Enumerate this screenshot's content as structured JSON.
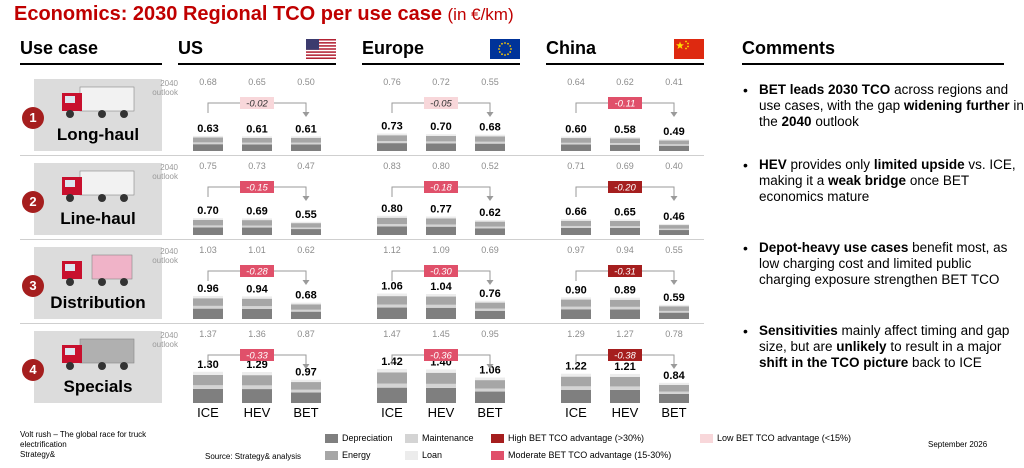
{
  "title": "Economics: 2030 Regional TCO per use case",
  "title_unit": "(in €/km)",
  "headers": {
    "use_case": "Use case",
    "comments": "Comments"
  },
  "regions": [
    {
      "name": "US",
      "flag": "us-flag"
    },
    {
      "name": "Europe",
      "flag": "eu-flag"
    },
    {
      "name": "China",
      "flag": "china-flag"
    }
  ],
  "outlook_label": "2040 outlook",
  "x_labels": [
    "ICE",
    "HEV",
    "BET"
  ],
  "colors": {
    "depreciation": "#7f7f7f",
    "maintenance": "#d4d4d4",
    "energy": "#a6a6a6",
    "loan": "#ececec",
    "high_adv": "#a51e1e",
    "moderate_adv": "#e0506a",
    "low_adv": "#f8d7da"
  },
  "chart_data": {
    "type": "bar",
    "title": "Economics: 2030 Regional TCO per use case",
    "ylabel": "TCO (in €/km)",
    "categories": [
      "ICE",
      "HEV",
      "BET"
    ],
    "use_cases": [
      {
        "number": "1",
        "name": "Long-haul",
        "icon": "long-haul-truck-icon",
        "regions": [
          {
            "region": "US",
            "tco_2030": [
              0.63,
              0.61,
              0.61
            ],
            "outlook_2040": [
              "0.68",
              "0.65",
              "0.50"
            ],
            "gap": "-0.02",
            "advantage": "low"
          },
          {
            "region": "Europe",
            "tco_2030": [
              0.73,
              0.7,
              0.68
            ],
            "outlook_2040": [
              "0.76",
              "0.72",
              "0.55"
            ],
            "gap": "-0.05",
            "advantage": "low"
          },
          {
            "region": "China",
            "tco_2030": [
              0.6,
              0.58,
              0.49
            ],
            "outlook_2040": [
              "0.64",
              "0.62",
              "0.41"
            ],
            "gap": "-0.11",
            "advantage": "moderate"
          }
        ]
      },
      {
        "number": "2",
        "name": "Line-haul",
        "icon": "line-haul-truck-icon",
        "regions": [
          {
            "region": "US",
            "tco_2030": [
              0.7,
              0.69,
              0.55
            ],
            "outlook_2040": [
              "0.75",
              "0.73",
              "0.47"
            ],
            "gap": "-0.15",
            "advantage": "moderate"
          },
          {
            "region": "Europe",
            "tco_2030": [
              0.8,
              0.77,
              0.62
            ],
            "outlook_2040": [
              "0.83",
              "0.80",
              "0.52"
            ],
            "gap": "-0.18",
            "advantage": "moderate"
          },
          {
            "region": "China",
            "tco_2030": [
              0.66,
              0.65,
              0.46
            ],
            "outlook_2040": [
              "0.71",
              "0.69",
              "0.40"
            ],
            "gap": "-0.20",
            "advantage": "high"
          }
        ]
      },
      {
        "number": "3",
        "name": "Distribution",
        "icon": "distribution-truck-icon",
        "regions": [
          {
            "region": "US",
            "tco_2030": [
              0.96,
              0.94,
              0.68
            ],
            "outlook_2040": [
              "1.03",
              "1.01",
              "0.62"
            ],
            "gap": "-0.28",
            "advantage": "moderate"
          },
          {
            "region": "Europe",
            "tco_2030": [
              1.06,
              1.04,
              0.76
            ],
            "outlook_2040": [
              "1.12",
              "1.09",
              "0.69"
            ],
            "gap": "-0.30",
            "advantage": "moderate"
          },
          {
            "region": "China",
            "tco_2030": [
              0.9,
              0.89,
              0.59
            ],
            "outlook_2040": [
              "0.97",
              "0.94",
              "0.55"
            ],
            "gap": "-0.31",
            "advantage": "high"
          }
        ]
      },
      {
        "number": "4",
        "name": "Specials",
        "icon": "specials-truck-icon",
        "regions": [
          {
            "region": "US",
            "tco_2030": [
              1.3,
              1.29,
              0.97
            ],
            "outlook_2040": [
              "1.37",
              "1.36",
              "0.87"
            ],
            "gap": "-0.33",
            "advantage": "moderate"
          },
          {
            "region": "Europe",
            "tco_2030": [
              1.42,
              1.4,
              1.06
            ],
            "outlook_2040": [
              "1.47",
              "1.45",
              "0.95"
            ],
            "gap": "-0.36",
            "advantage": "moderate"
          },
          {
            "region": "China",
            "tco_2030": [
              1.22,
              1.21,
              0.84
            ],
            "outlook_2040": [
              "1.29",
              "1.27",
              "0.78"
            ],
            "gap": "-0.38",
            "advantage": "high"
          }
        ]
      }
    ]
  },
  "comments": [
    [
      {
        "t": "BET leads 2030 TCO",
        "b": true
      },
      {
        "t": " across regions and use cases, with the gap ",
        "b": false
      },
      {
        "t": "widening further",
        "b": true
      },
      {
        "t": " in the ",
        "b": false
      },
      {
        "t": "2040",
        "b": true
      },
      {
        "t": " outlook",
        "b": false
      }
    ],
    [
      {
        "t": "HEV",
        "b": true
      },
      {
        "t": " provides only ",
        "b": false
      },
      {
        "t": "limited upside",
        "b": true
      },
      {
        "t": " vs. ICE, making it a ",
        "b": false
      },
      {
        "t": "weak bridge",
        "b": true
      },
      {
        "t": " once BET economics mature",
        "b": false
      }
    ],
    [
      {
        "t": "Depot-heavy use cases",
        "b": true
      },
      {
        "t": " benefit most, as low charging cost and limited public charging exposure strengthen BET TCO",
        "b": false
      }
    ],
    [
      {
        "t": "Sensitivities",
        "b": true
      },
      {
        "t": " mainly affect timing and gap size, but are ",
        "b": false
      },
      {
        "t": "unlikely",
        "b": true
      },
      {
        "t": " to result in a major ",
        "b": false
      },
      {
        "t": "shift in the TCO picture",
        "b": true
      },
      {
        "t": " back to ICE",
        "b": false
      }
    ]
  ],
  "legend": {
    "depreciation": "Depreciation",
    "maintenance": "Maintenance",
    "energy": "Energy",
    "loan": "Loan",
    "high": "High BET TCO advantage (>30%)",
    "moderate": "Moderate BET TCO advantage (15-30%)",
    "low": "Low BET TCO advantage (<15%)"
  },
  "footer": {
    "report_line1": "Volt rush – The global race for truck",
    "report_line2": "electrification",
    "brand": "Strategy&",
    "source": "Source: Strategy& analysis",
    "date": "September 2026"
  }
}
